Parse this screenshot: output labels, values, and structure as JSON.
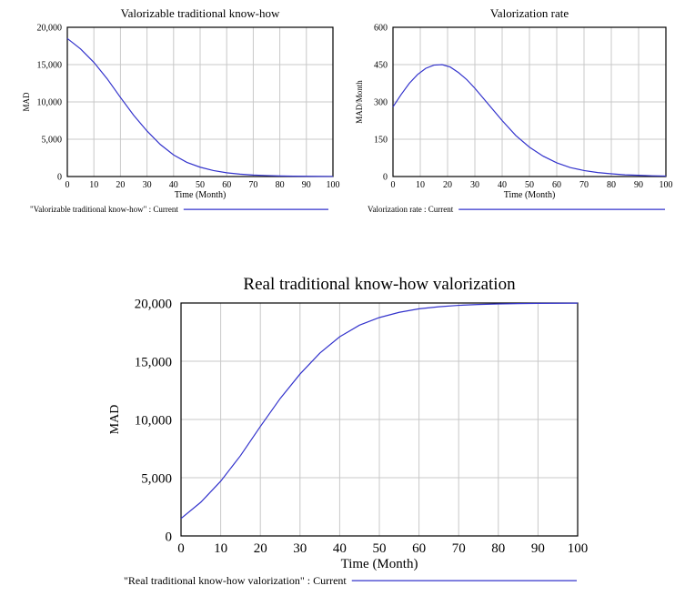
{
  "chart_data": [
    {
      "type": "line",
      "title": "Valorizable traditional know-how",
      "xlabel": "Time (Month)",
      "ylabel": "MAD",
      "xlim": [
        0,
        100
      ],
      "ylim": [
        0,
        20000
      ],
      "xticks": [
        "0",
        "10",
        "20",
        "30",
        "40",
        "50",
        "60",
        "70",
        "80",
        "90",
        "100"
      ],
      "yticks": [
        "0",
        "5,000",
        "10,000",
        "15,000",
        "20,000"
      ],
      "grid": true,
      "legend": "Valorizable traditional know-how\" : Current",
      "legend_quote": "\"",
      "series": [
        {
          "color": "#3333cc",
          "x": [
            0,
            5,
            10,
            15,
            20,
            25,
            30,
            35,
            40,
            45,
            50,
            55,
            60,
            65,
            70,
            75,
            80,
            85,
            90,
            95,
            100
          ],
          "y": [
            18500,
            17100,
            15300,
            13100,
            10600,
            8200,
            6100,
            4300,
            2900,
            1900,
            1250,
            800,
            500,
            320,
            200,
            130,
            80,
            50,
            30,
            20,
            10
          ]
        }
      ]
    },
    {
      "type": "line",
      "title": "Valorization rate",
      "xlabel": "Time (Month)",
      "ylabel": "MAD/Month",
      "xlim": [
        0,
        100
      ],
      "ylim": [
        0,
        600
      ],
      "xticks": [
        "0",
        "10",
        "20",
        "30",
        "40",
        "50",
        "60",
        "70",
        "80",
        "90",
        "100"
      ],
      "yticks": [
        "0",
        "150",
        "300",
        "450",
        "600"
      ],
      "grid": true,
      "legend": "Valorization rate : Current",
      "series": [
        {
          "color": "#3333cc",
          "x": [
            0,
            3,
            6,
            9,
            12,
            15,
            18,
            21,
            24,
            27,
            30,
            35,
            40,
            45,
            50,
            55,
            60,
            65,
            70,
            75,
            80,
            85,
            90,
            95,
            100
          ],
          "y": [
            280,
            330,
            375,
            410,
            435,
            448,
            450,
            440,
            418,
            390,
            355,
            290,
            225,
            165,
            118,
            82,
            55,
            36,
            24,
            16,
            11,
            7,
            5,
            3,
            2
          ]
        }
      ]
    },
    {
      "type": "line",
      "title": "Real traditional know-how valorization",
      "xlabel": "Time (Month)",
      "ylabel": "MAD",
      "xlim": [
        0,
        100
      ],
      "ylim": [
        0,
        20000
      ],
      "xticks": [
        "0",
        "10",
        "20",
        "30",
        "40",
        "50",
        "60",
        "70",
        "80",
        "90",
        "100"
      ],
      "yticks": [
        "0",
        "5,000",
        "10,000",
        "15,000",
        "20,000"
      ],
      "grid": true,
      "legend": "Real traditional know-how valorization\" : Current",
      "legend_quote": "\"",
      "series": [
        {
          "color": "#3333cc",
          "x": [
            0,
            5,
            10,
            15,
            20,
            25,
            30,
            35,
            40,
            45,
            50,
            55,
            60,
            65,
            70,
            75,
            80,
            85,
            90,
            95,
            100
          ],
          "y": [
            1500,
            2900,
            4700,
            6900,
            9400,
            11800,
            13900,
            15700,
            17100,
            18100,
            18750,
            19200,
            19500,
            19680,
            19800,
            19870,
            19920,
            19950,
            19970,
            19980,
            19990
          ]
        }
      ]
    }
  ]
}
